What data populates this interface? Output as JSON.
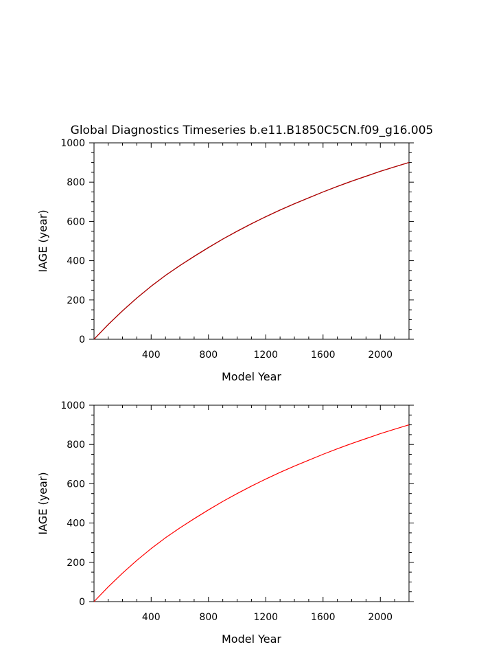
{
  "page_title": "Global Diagnostics Timeseries b.e11.B1850C5CN.f09_g16.005",
  "chart_data": [
    {
      "type": "line",
      "title": "Global Diagnostics Timeseries b.e11.B1850C5CN.f09_g16.005",
      "xlabel": "Model Year",
      "ylabel": "IAGE (year)",
      "xlim": [
        1,
        2200
      ],
      "ylim": [
        0,
        1000
      ],
      "x_ticks": [
        400,
        800,
        1200,
        1600,
        2000
      ],
      "y_ticks": [
        0,
        200,
        400,
        600,
        800,
        1000
      ],
      "grid": false,
      "series": [
        {
          "color": "#000000",
          "x": [
            1,
            100,
            200,
            300,
            400,
            500,
            600,
            700,
            800,
            900,
            1000,
            1100,
            1200,
            1300,
            1400,
            1500,
            1600,
            1700,
            1800,
            1900,
            2000,
            2100,
            2200
          ],
          "y": [
            0,
            75,
            145,
            210,
            270,
            325,
            375,
            422,
            467,
            510,
            550,
            588,
            624,
            658,
            690,
            720,
            750,
            778,
            805,
            830,
            855,
            878,
            900
          ]
        },
        {
          "color": "#c00000",
          "x": [
            1,
            100,
            200,
            300,
            400,
            500,
            600,
            700,
            800,
            900,
            1000,
            1100,
            1200,
            1300,
            1400,
            1500,
            1600,
            1700,
            1800,
            1900,
            2000,
            2100,
            2200
          ],
          "y": [
            0,
            75,
            145,
            210,
            270,
            325,
            375,
            422,
            467,
            510,
            550,
            588,
            624,
            658,
            690,
            720,
            750,
            778,
            805,
            830,
            855,
            878,
            900
          ]
        }
      ]
    },
    {
      "type": "line",
      "title": "",
      "xlabel": "Model Year",
      "ylabel": "IAGE (year)",
      "xlim": [
        1,
        2200
      ],
      "ylim": [
        0,
        1000
      ],
      "x_ticks": [
        400,
        800,
        1200,
        1600,
        2000
      ],
      "y_ticks": [
        0,
        200,
        400,
        600,
        800,
        1000
      ],
      "grid": false,
      "series": [
        {
          "color": "#ff0000",
          "x": [
            1,
            100,
            200,
            300,
            400,
            500,
            600,
            700,
            800,
            900,
            1000,
            1100,
            1200,
            1300,
            1400,
            1500,
            1600,
            1700,
            1800,
            1900,
            2000,
            2100,
            2200
          ],
          "y": [
            0,
            75,
            145,
            210,
            270,
            325,
            375,
            422,
            467,
            510,
            550,
            588,
            624,
            658,
            690,
            720,
            750,
            778,
            805,
            830,
            855,
            878,
            900
          ]
        }
      ]
    }
  ]
}
